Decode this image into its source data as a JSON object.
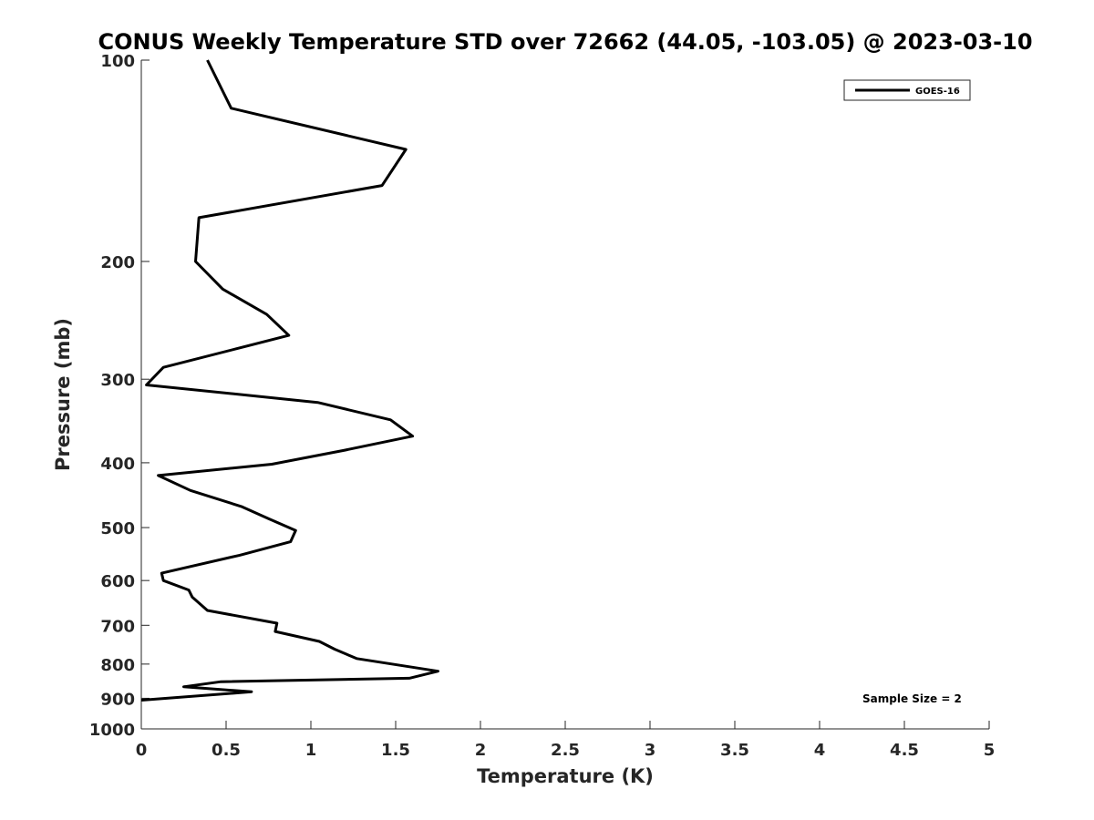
{
  "chart_data": {
    "type": "line",
    "title": "CONUS Weekly Temperature STD over 72662 (44.05, -103.05) @ 2023-03-10",
    "xlabel": "Temperature (K)",
    "ylabel": "Pressure (mb)",
    "xlim": [
      0,
      5
    ],
    "ylim": [
      100,
      1000
    ],
    "y_scale": "log",
    "y_reversed": true,
    "x_ticks": [
      "0",
      "0.5",
      "1",
      "1.5",
      "2",
      "2.5",
      "3",
      "3.5",
      "4",
      "4.5",
      "5"
    ],
    "y_ticks": [
      "100",
      "200",
      "300",
      "400",
      "500",
      "600",
      "700",
      "800",
      "900",
      "1000"
    ],
    "grid": false,
    "legend_position": "top-right",
    "series": [
      {
        "name": "GOES-16",
        "color": "#000000",
        "x": [
          0.39,
          0.53,
          1.56,
          1.42,
          0.34,
          0.32,
          0.48,
          0.74,
          0.87,
          0.13,
          0.03,
          1.04,
          1.47,
          1.6,
          1.2,
          0.77,
          0.1,
          0.29,
          0.59,
          0.75,
          0.91,
          0.88,
          0.58,
          0.12,
          0.13,
          0.28,
          0.3,
          0.39,
          0.8,
          0.79,
          1.05,
          1.14,
          1.27,
          1.75,
          1.58,
          0.47,
          0.25,
          0.65,
          0.0
        ],
        "y": [
          100,
          118,
          136,
          154,
          172,
          200,
          220,
          240,
          258,
          288,
          306,
          325,
          345,
          365,
          383,
          402,
          418,
          440,
          465,
          485,
          505,
          525,
          550,
          585,
          600,
          620,
          635,
          665,
          695,
          715,
          740,
          760,
          785,
          820,
          840,
          850,
          865,
          880,
          906
        ]
      }
    ],
    "annotations": [
      {
        "text": "Sample Size = 2",
        "position": "bottom-right"
      }
    ]
  }
}
